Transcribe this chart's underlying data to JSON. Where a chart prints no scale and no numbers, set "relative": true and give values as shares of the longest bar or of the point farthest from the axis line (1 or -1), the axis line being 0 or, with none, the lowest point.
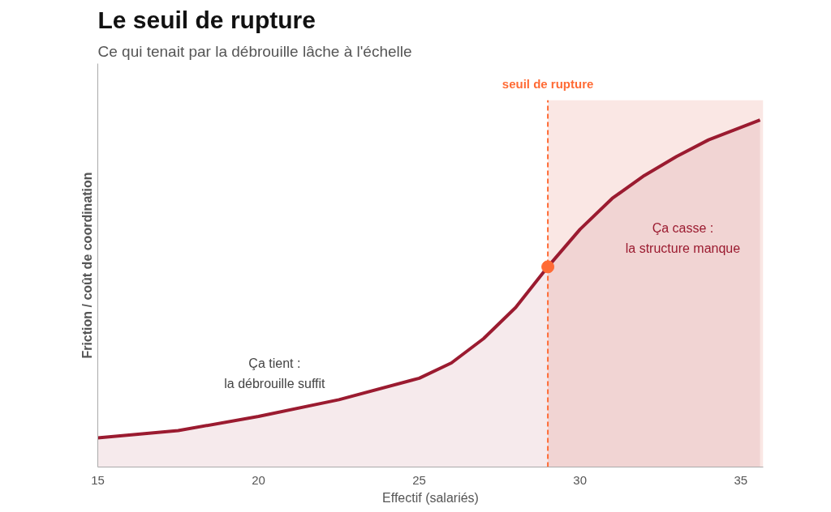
{
  "chart_data": {
    "type": "area",
    "title": "Le seuil de rupture",
    "subtitle": "Ce qui tenait par la débrouille lâche à l'échelle",
    "xlabel": "Effectif (salariés)",
    "ylabel": "Friction / coût de coordination",
    "relative": true,
    "xlim": [
      15,
      35.7
    ],
    "xticks": [
      15,
      20,
      25,
      30,
      35
    ],
    "series": [
      {
        "color": "#9b1b30",
        "x": [
          15,
          17.5,
          20,
          22.5,
          25,
          26,
          27,
          28,
          29,
          30,
          31,
          32,
          33,
          34,
          35.6
        ],
        "values": [
          0.084,
          0.105,
          0.146,
          0.194,
          0.256,
          0.3,
          0.37,
          0.46,
          0.577,
          0.685,
          0.774,
          0.84,
          0.895,
          0.943,
          1.0
        ]
      },
      {
        "type": "scatter",
        "color": "#ff6b35",
        "x": [
          29
        ],
        "values": [
          0.577
        ]
      }
    ],
    "ref_lines": [
      {
        "axis": "x",
        "value": 29,
        "label": "seuil de rupture",
        "color": "#ff6b35",
        "line_style": "dashed"
      }
    ],
    "bands": [
      {
        "axis": "x",
        "from": 29,
        "to": 35.7,
        "color": "#f9e1dd"
      }
    ],
    "annotations": [
      "Ça tient :\nla débrouille suffit",
      "Ça casse :\nla structure manque"
    ]
  }
}
